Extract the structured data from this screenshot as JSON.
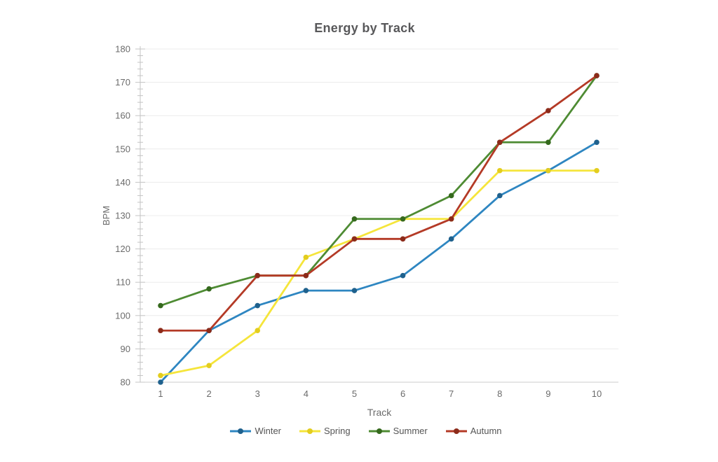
{
  "chart_data": {
    "type": "line",
    "title": "Energy by Track",
    "xlabel": "Track",
    "ylabel": "BPM",
    "x": [
      1,
      2,
      3,
      4,
      5,
      6,
      7,
      8,
      9,
      10
    ],
    "ylim": [
      80,
      180
    ],
    "y_tick_step": 10,
    "y_minor_tick_step": 2,
    "y_tick_labels": [
      "80",
      "90",
      "100",
      "110",
      "120",
      "130",
      "140",
      "150",
      "160",
      "170",
      "180"
    ],
    "x_tick_labels": [
      "1",
      "2",
      "3",
      "4",
      "5",
      "6",
      "7",
      "8",
      "9",
      "10"
    ],
    "grid": "horizontal-only",
    "legend_position": "bottom",
    "series": [
      {
        "name": "Winter",
        "color": "#2E86C1",
        "marker_color": "#1F618D",
        "values": [
          80,
          95.5,
          103,
          107.5,
          107.5,
          112,
          123,
          136,
          143.5,
          152
        ]
      },
      {
        "name": "Spring",
        "color": "#F5E53B",
        "marker_color": "#E3CD1E",
        "values": [
          82,
          85,
          95.5,
          117.5,
          123,
          129,
          129,
          143.5,
          143.5,
          143.5
        ]
      },
      {
        "name": "Summer",
        "color": "#4E8B33",
        "marker_color": "#35691D",
        "values": [
          103,
          108,
          112,
          112,
          129,
          129,
          136,
          152,
          152,
          172
        ]
      },
      {
        "name": "Autumn",
        "color": "#B43A26",
        "marker_color": "#8C2B1A",
        "values": [
          95.5,
          95.5,
          112,
          112,
          123,
          123,
          129,
          152,
          161.5,
          172
        ]
      }
    ]
  },
  "colors": {
    "background": "#FFFFFF",
    "title_text": "#58585A",
    "axis_text": "#6B6B6B",
    "grid_line": "#ECECEC",
    "axis_line": "#CDCDCD",
    "tick_line": "#C4C4C4",
    "legend_text": "#555555"
  }
}
